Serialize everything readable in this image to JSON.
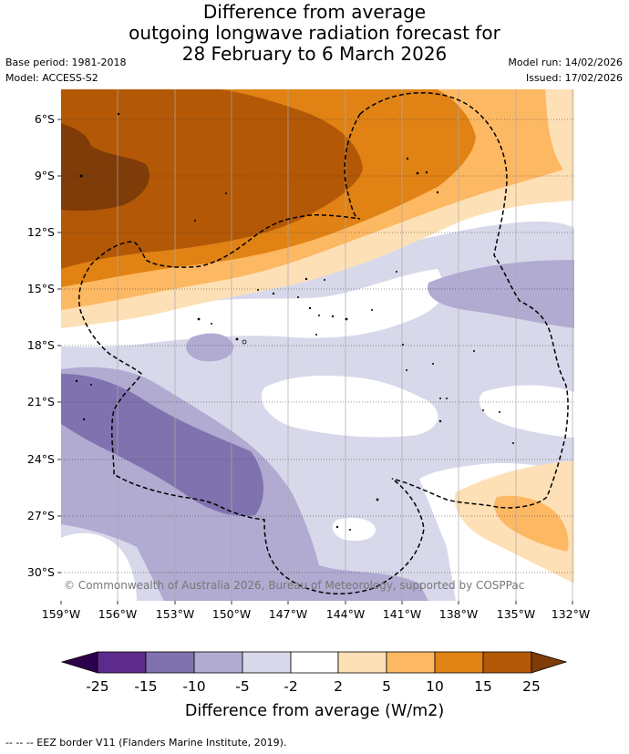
{
  "title": {
    "line1": "Difference from average",
    "line2": "outgoing longwave radiation forecast for",
    "line3": "28 February to 6 March 2026"
  },
  "meta": {
    "base_period": "Base period: 1981-2018",
    "model": "Model: ACCESS-S2",
    "model_run": "Model run: 14/02/2026",
    "issued": "Issued: 17/02/2026"
  },
  "axes": {
    "lat_labels": [
      "6°S",
      "9°S",
      "12°S",
      "15°S",
      "18°S",
      "21°S",
      "24°S",
      "27°S",
      "30°S"
    ],
    "lon_labels": [
      "159°W",
      "156°W",
      "153°W",
      "150°W",
      "147°W",
      "144°W",
      "141°W",
      "138°W",
      "135°W",
      "132°W"
    ]
  },
  "copyright": "© Commonwealth of Australia 2026, Bureau of Meteorology, supported by COSPPac",
  "colorbar": {
    "ticks": [
      "-25",
      "-15",
      "-10",
      "-5",
      "-2",
      "2",
      "5",
      "10",
      "15",
      "25"
    ],
    "label": "Difference from average (W/m2)",
    "colors": {
      "below": "#2d004b",
      "n25_15": "#5c2b8c",
      "n15_10": "#8072ae",
      "n10_5": "#b1aad1",
      "n5_2": "#d8d8eb",
      "n2_2": "#ffffff",
      "p2_5": "#fee0b6",
      "p5_10": "#fdb863",
      "p10_15": "#e08214",
      "p15_25": "#b35806",
      "above": "#7f3b08"
    }
  },
  "footer": "--  --  -- EEZ border V11 (Flanders Marine Institute, 2019)."
}
